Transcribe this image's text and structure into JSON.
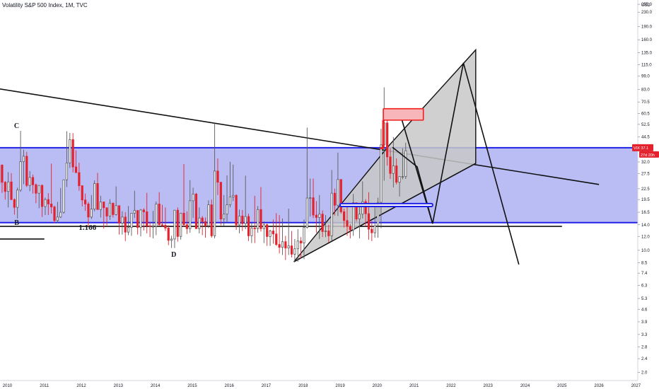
{
  "header": {
    "title": "Volatility S&P 500 Index, 1M, TVC"
  },
  "chart_data": {
    "type": "candlestick",
    "title": "Volatility S&P 500 Index, 1M, TVC",
    "yscale": "log",
    "yunit": "USD",
    "y_ticks": [
      "255.0",
      "230.0",
      "190.0",
      "160.0",
      "135.0",
      "115.0",
      "99.0",
      "83.0",
      "70.5",
      "60.5",
      "52.5",
      "44.5",
      "37.5",
      "32.0",
      "27.5",
      "22.5",
      "19.5",
      "16.5",
      "14.0",
      "12.0",
      "10.0",
      "8.5",
      "7.4",
      "6.3",
      "5.3",
      "4.6",
      "3.9",
      "3.3",
      "2.8",
      "2.4",
      "2.0"
    ],
    "x_ticks": [
      "2010",
      "2011",
      "2012",
      "2013",
      "2014",
      "2015",
      "2016",
      "2017",
      "2018",
      "2019",
      "2020",
      "2021",
      "2022",
      "2023",
      "2024",
      "2025",
      "2026",
      "2027"
    ],
    "ylim": [
      1.8,
      270
    ],
    "xlim_year": [
      2009.8,
      2027.05
    ],
    "price_tags": {
      "symbol": "VIX",
      "last": "37.1",
      "countdown": "27d 20h"
    },
    "zone": {
      "top": 38.6,
      "bottom": 14.4
    },
    "candles": [
      {
        "t": "2009-10",
        "o": 24.0,
        "h": 30.7,
        "l": 20.9,
        "c": 30.7
      },
      {
        "t": "2009-11",
        "o": 30.7,
        "h": 31.0,
        "l": 21.3,
        "c": 24.5
      },
      {
        "t": "2009-12",
        "o": 24.5,
        "h": 24.9,
        "l": 19.5,
        "c": 21.7
      },
      {
        "t": "2010-01",
        "o": 21.7,
        "h": 28.0,
        "l": 17.6,
        "c": 24.6
      },
      {
        "t": "2010-02",
        "o": 24.6,
        "h": 27.6,
        "l": 19.4,
        "c": 19.5
      },
      {
        "t": "2010-03",
        "o": 19.5,
        "h": 19.8,
        "l": 16.0,
        "c": 17.6
      },
      {
        "t": "2010-04",
        "o": 17.6,
        "h": 22.8,
        "l": 15.2,
        "c": 22.1
      },
      {
        "t": "2010-05",
        "o": 22.1,
        "h": 48.2,
        "l": 21.6,
        "c": 32.1
      },
      {
        "t": "2010-06",
        "o": 32.1,
        "h": 37.6,
        "l": 23.9,
        "c": 34.5
      },
      {
        "t": "2010-07",
        "o": 34.5,
        "h": 36.6,
        "l": 23.0,
        "c": 23.5
      },
      {
        "t": "2010-08",
        "o": 23.5,
        "h": 28.4,
        "l": 21.8,
        "c": 26.1
      },
      {
        "t": "2010-09",
        "o": 26.1,
        "h": 27.1,
        "l": 21.1,
        "c": 23.7
      },
      {
        "t": "2010-10",
        "o": 23.7,
        "h": 24.1,
        "l": 18.6,
        "c": 21.2
      },
      {
        "t": "2010-11",
        "o": 21.2,
        "h": 23.5,
        "l": 17.4,
        "c": 23.5
      },
      {
        "t": "2010-12",
        "o": 23.5,
        "h": 23.8,
        "l": 15.5,
        "c": 17.8
      },
      {
        "t": "2011-01",
        "o": 17.8,
        "h": 20.0,
        "l": 15.9,
        "c": 19.5
      },
      {
        "t": "2011-02",
        "o": 19.5,
        "h": 21.2,
        "l": 15.9,
        "c": 18.4
      },
      {
        "t": "2011-03",
        "o": 18.4,
        "h": 31.3,
        "l": 16.2,
        "c": 17.7
      },
      {
        "t": "2011-04",
        "o": 17.7,
        "h": 18.0,
        "l": 14.3,
        "c": 14.8
      },
      {
        "t": "2011-05",
        "o": 14.8,
        "h": 18.9,
        "l": 14.3,
        "c": 15.5
      },
      {
        "t": "2011-06",
        "o": 15.5,
        "h": 22.7,
        "l": 15.3,
        "c": 16.5
      },
      {
        "t": "2011-07",
        "o": 16.5,
        "h": 25.3,
        "l": 16.2,
        "c": 25.3
      },
      {
        "t": "2011-08",
        "o": 25.3,
        "h": 48.0,
        "l": 23.0,
        "c": 31.6
      },
      {
        "t": "2011-09",
        "o": 31.6,
        "h": 46.9,
        "l": 29.6,
        "c": 42.96
      },
      {
        "t": "2011-10",
        "o": 42.96,
        "h": 46.8,
        "l": 27.9,
        "c": 29.96
      },
      {
        "t": "2011-11",
        "o": 29.96,
        "h": 37.3,
        "l": 28.0,
        "c": 27.8
      },
      {
        "t": "2011-12",
        "o": 27.8,
        "h": 31.7,
        "l": 21.9,
        "c": 23.4
      },
      {
        "t": "2012-01",
        "o": 23.4,
        "h": 23.5,
        "l": 17.8,
        "c": 19.4
      },
      {
        "t": "2012-02",
        "o": 19.4,
        "h": 21.1,
        "l": 16.8,
        "c": 18.4
      },
      {
        "t": "2012-03",
        "o": 18.4,
        "h": 18.9,
        "l": 13.7,
        "c": 15.5
      },
      {
        "t": "2012-04",
        "o": 15.5,
        "h": 20.7,
        "l": 15.1,
        "c": 17.2
      },
      {
        "t": "2012-05",
        "o": 17.2,
        "h": 25.1,
        "l": 16.7,
        "c": 24.1
      },
      {
        "t": "2012-06",
        "o": 24.1,
        "h": 27.7,
        "l": 17.1,
        "c": 17.1
      },
      {
        "t": "2012-07",
        "o": 17.1,
        "h": 20.5,
        "l": 15.4,
        "c": 18.9
      },
      {
        "t": "2012-08",
        "o": 18.9,
        "h": 19.0,
        "l": 13.3,
        "c": 17.5
      },
      {
        "t": "2012-09",
        "o": 17.5,
        "h": 17.6,
        "l": 13.9,
        "c": 15.7
      },
      {
        "t": "2012-10",
        "o": 15.7,
        "h": 19.6,
        "l": 14.9,
        "c": 18.6
      },
      {
        "t": "2012-11",
        "o": 18.6,
        "h": 18.7,
        "l": 15.4,
        "c": 16.0
      },
      {
        "t": "2012-12",
        "o": 16.0,
        "h": 23.2,
        "l": 15.8,
        "c": 18.0
      },
      {
        "t": "2013-01",
        "o": 18.0,
        "h": 18.0,
        "l": 12.3,
        "c": 14.3
      },
      {
        "t": "2013-02",
        "o": 14.3,
        "h": 16.7,
        "l": 12.3,
        "c": 15.5
      },
      {
        "t": "2013-03",
        "o": 15.5,
        "h": 16.5,
        "l": 11.3,
        "c": 12.7
      },
      {
        "t": "2013-04",
        "o": 12.7,
        "h": 17.9,
        "l": 12.2,
        "c": 13.5
      },
      {
        "t": "2013-05",
        "o": 13.5,
        "h": 16.3,
        "l": 12.1,
        "c": 16.3
      },
      {
        "t": "2013-06",
        "o": 16.3,
        "h": 21.9,
        "l": 15.3,
        "c": 16.9
      },
      {
        "t": "2013-07",
        "o": 16.9,
        "h": 16.9,
        "l": 12.3,
        "c": 13.5
      },
      {
        "t": "2013-08",
        "o": 13.5,
        "h": 17.2,
        "l": 12.0,
        "c": 17.0
      },
      {
        "t": "2013-09",
        "o": 17.0,
        "h": 17.4,
        "l": 13.0,
        "c": 16.6
      },
      {
        "t": "2013-10",
        "o": 16.6,
        "h": 21.3,
        "l": 12.5,
        "c": 13.8
      },
      {
        "t": "2013-11",
        "o": 13.8,
        "h": 14.5,
        "l": 11.9,
        "c": 13.7
      },
      {
        "t": "2013-12",
        "o": 13.7,
        "h": 16.8,
        "l": 11.7,
        "c": 13.7
      },
      {
        "t": "2014-01",
        "o": 13.7,
        "h": 19.0,
        "l": 12.2,
        "c": 18.4
      },
      {
        "t": "2014-02",
        "o": 18.4,
        "h": 21.5,
        "l": 13.7,
        "c": 14.0
      },
      {
        "t": "2014-03",
        "o": 14.0,
        "h": 18.2,
        "l": 13.6,
        "c": 13.9
      },
      {
        "t": "2014-04",
        "o": 13.9,
        "h": 17.6,
        "l": 12.9,
        "c": 13.4
      },
      {
        "t": "2014-05",
        "o": 13.4,
        "h": 13.9,
        "l": 10.7,
        "c": 11.4
      },
      {
        "t": "2014-06",
        "o": 11.4,
        "h": 12.1,
        "l": 10.3,
        "c": 11.6
      },
      {
        "t": "2014-07",
        "o": 11.6,
        "h": 17.0,
        "l": 10.3,
        "c": 16.95
      },
      {
        "t": "2014-08",
        "o": 16.95,
        "h": 17.6,
        "l": 11.2,
        "c": 12.0
      },
      {
        "t": "2014-09",
        "o": 12.0,
        "h": 16.3,
        "l": 11.5,
        "c": 16.3
      },
      {
        "t": "2014-10",
        "o": 16.3,
        "h": 31.1,
        "l": 13.6,
        "c": 14.0
      },
      {
        "t": "2014-11",
        "o": 14.0,
        "h": 16.7,
        "l": 12.4,
        "c": 13.3
      },
      {
        "t": "2014-12",
        "o": 13.3,
        "h": 25.2,
        "l": 12.6,
        "c": 19.2
      },
      {
        "t": "2015-01",
        "o": 19.2,
        "h": 22.8,
        "l": 15.3,
        "c": 20.97
      },
      {
        "t": "2015-02",
        "o": 20.97,
        "h": 21.3,
        "l": 13.3,
        "c": 13.3
      },
      {
        "t": "2015-03",
        "o": 13.3,
        "h": 17.6,
        "l": 12.5,
        "c": 15.3
      },
      {
        "t": "2015-04",
        "o": 15.3,
        "h": 15.7,
        "l": 12.2,
        "c": 14.6
      },
      {
        "t": "2015-05",
        "o": 14.6,
        "h": 15.4,
        "l": 11.8,
        "c": 13.8
      },
      {
        "t": "2015-06",
        "o": 13.8,
        "h": 19.3,
        "l": 13.4,
        "c": 18.2
      },
      {
        "t": "2015-07",
        "o": 18.2,
        "h": 19.5,
        "l": 11.8,
        "c": 12.1
      },
      {
        "t": "2015-08",
        "o": 12.1,
        "h": 53.3,
        "l": 11.7,
        "c": 28.4
      },
      {
        "t": "2015-09",
        "o": 28.4,
        "h": 33.5,
        "l": 20.7,
        "c": 24.5
      },
      {
        "t": "2015-10",
        "o": 24.5,
        "h": 24.6,
        "l": 13.9,
        "c": 15.1
      },
      {
        "t": "2015-11",
        "o": 15.1,
        "h": 20.7,
        "l": 13.8,
        "c": 16.1
      },
      {
        "t": "2015-12",
        "o": 16.1,
        "h": 26.8,
        "l": 14.4,
        "c": 18.2
      },
      {
        "t": "2016-01",
        "o": 18.2,
        "h": 32.1,
        "l": 17.6,
        "c": 20.2
      },
      {
        "t": "2016-02",
        "o": 20.2,
        "h": 30.9,
        "l": 19.1,
        "c": 20.6
      },
      {
        "t": "2016-03",
        "o": 20.6,
        "h": 20.9,
        "l": 13.1,
        "c": 13.95
      },
      {
        "t": "2016-04",
        "o": 13.95,
        "h": 17.1,
        "l": 12.5,
        "c": 15.7
      },
      {
        "t": "2016-05",
        "o": 15.7,
        "h": 17.0,
        "l": 12.9,
        "c": 14.2
      },
      {
        "t": "2016-06",
        "o": 14.2,
        "h": 26.7,
        "l": 13.2,
        "c": 15.6
      },
      {
        "t": "2016-07",
        "o": 15.6,
        "h": 16.2,
        "l": 11.3,
        "c": 12.1
      },
      {
        "t": "2016-08",
        "o": 12.1,
        "h": 14.3,
        "l": 11.0,
        "c": 13.4
      },
      {
        "t": "2016-09",
        "o": 13.4,
        "h": 20.5,
        "l": 11.0,
        "c": 13.3
      },
      {
        "t": "2016-10",
        "o": 13.3,
        "h": 17.9,
        "l": 12.6,
        "c": 17.1
      },
      {
        "t": "2016-11",
        "o": 17.1,
        "h": 23.0,
        "l": 12.8,
        "c": 13.3
      },
      {
        "t": "2016-12",
        "o": 13.3,
        "h": 14.6,
        "l": 11.0,
        "c": 14.0
      },
      {
        "t": "2017-01",
        "o": 14.0,
        "h": 14.2,
        "l": 10.6,
        "c": 11.99
      },
      {
        "t": "2017-02",
        "o": 11.99,
        "h": 13.1,
        "l": 10.6,
        "c": 12.9
      },
      {
        "t": "2017-03",
        "o": 12.9,
        "h": 15.0,
        "l": 10.9,
        "c": 12.4
      },
      {
        "t": "2017-04",
        "o": 12.4,
        "h": 16.3,
        "l": 10.6,
        "c": 10.8
      },
      {
        "t": "2017-05",
        "o": 10.8,
        "h": 15.9,
        "l": 9.6,
        "c": 10.4
      },
      {
        "t": "2017-06",
        "o": 10.4,
        "h": 15.2,
        "l": 9.4,
        "c": 11.2
      },
      {
        "t": "2017-07",
        "o": 11.2,
        "h": 12.1,
        "l": 8.8,
        "c": 10.3
      },
      {
        "t": "2017-08",
        "o": 10.3,
        "h": 17.3,
        "l": 9.4,
        "c": 10.6
      },
      {
        "t": "2017-09",
        "o": 10.6,
        "h": 12.9,
        "l": 9.1,
        "c": 9.5
      },
      {
        "t": "2017-10",
        "o": 9.5,
        "h": 11.6,
        "l": 8.6,
        "c": 10.2
      },
      {
        "t": "2017-11",
        "o": 10.2,
        "h": 13.2,
        "l": 8.6,
        "c": 11.3
      },
      {
        "t": "2017-12",
        "o": 11.3,
        "h": 11.9,
        "l": 9.0,
        "c": 11.0
      },
      {
        "t": "2018-01",
        "o": 11.0,
        "h": 15.0,
        "l": 8.9,
        "c": 13.5
      },
      {
        "t": "2018-02",
        "o": 13.5,
        "h": 50.3,
        "l": 13.3,
        "c": 19.9
      },
      {
        "t": "2018-03",
        "o": 19.9,
        "h": 25.7,
        "l": 15.6,
        "c": 19.97
      },
      {
        "t": "2018-04",
        "o": 19.97,
        "h": 25.7,
        "l": 15.3,
        "c": 15.9
      },
      {
        "t": "2018-05",
        "o": 15.9,
        "h": 19.1,
        "l": 12.6,
        "c": 15.4
      },
      {
        "t": "2018-06",
        "o": 15.4,
        "h": 20.7,
        "l": 11.6,
        "c": 16.1
      },
      {
        "t": "2018-07",
        "o": 16.1,
        "h": 16.9,
        "l": 11.9,
        "c": 12.8
      },
      {
        "t": "2018-08",
        "o": 12.8,
        "h": 15.9,
        "l": 11.9,
        "c": 12.9
      },
      {
        "t": "2018-09",
        "o": 12.9,
        "h": 14.0,
        "l": 11.1,
        "c": 12.1
      },
      {
        "t": "2018-10",
        "o": 12.1,
        "h": 28.8,
        "l": 11.3,
        "c": 21.2
      },
      {
        "t": "2018-11",
        "o": 21.2,
        "h": 22.5,
        "l": 15.8,
        "c": 18.1
      },
      {
        "t": "2018-12",
        "o": 18.1,
        "h": 36.2,
        "l": 15.7,
        "c": 25.4
      },
      {
        "t": "2019-01",
        "o": 25.4,
        "h": 25.5,
        "l": 16.2,
        "c": 16.6
      },
      {
        "t": "2019-02",
        "o": 16.6,
        "h": 17.3,
        "l": 13.5,
        "c": 14.8
      },
      {
        "t": "2019-03",
        "o": 14.8,
        "h": 17.8,
        "l": 12.1,
        "c": 13.7
      },
      {
        "t": "2019-04",
        "o": 13.7,
        "h": 14.1,
        "l": 11.7,
        "c": 13.1
      },
      {
        "t": "2019-05",
        "o": 13.1,
        "h": 21.0,
        "l": 12.1,
        "c": 18.7
      },
      {
        "t": "2019-06",
        "o": 18.7,
        "h": 18.7,
        "l": 14.6,
        "c": 15.1
      },
      {
        "t": "2019-07",
        "o": 15.1,
        "h": 17.9,
        "l": 11.7,
        "c": 16.1
      },
      {
        "t": "2019-08",
        "o": 16.1,
        "h": 24.8,
        "l": 15.2,
        "c": 18.98
      },
      {
        "t": "2019-09",
        "o": 18.98,
        "h": 19.6,
        "l": 13.7,
        "c": 16.2
      },
      {
        "t": "2019-10",
        "o": 16.2,
        "h": 21.5,
        "l": 11.5,
        "c": 13.2
      },
      {
        "t": "2019-11",
        "o": 13.2,
        "h": 14.7,
        "l": 11.3,
        "c": 12.6
      },
      {
        "t": "2019-12",
        "o": 12.6,
        "h": 17.9,
        "l": 11.8,
        "c": 13.8
      },
      {
        "t": "2020-01",
        "o": 13.8,
        "h": 19.99,
        "l": 11.8,
        "c": 18.8
      },
      {
        "t": "2020-02",
        "o": 18.8,
        "h": 49.5,
        "l": 13.4,
        "c": 40.1
      },
      {
        "t": "2020-03",
        "o": 40.1,
        "h": 85.5,
        "l": 25.0,
        "c": 53.5
      },
      {
        "t": "2020-04",
        "o": 53.5,
        "h": 60.6,
        "l": 30.5,
        "c": 34.2
      },
      {
        "t": "2020-05",
        "o": 34.2,
        "h": 38.3,
        "l": 25.6,
        "c": 27.5
      },
      {
        "t": "2020-06",
        "o": 27.5,
        "h": 44.4,
        "l": 22.9,
        "c": 30.4
      },
      {
        "t": "2020-07",
        "o": 30.4,
        "h": 33.5,
        "l": 23.8,
        "c": 24.5
      },
      {
        "t": "2020-08",
        "o": 24.5,
        "h": 26.4,
        "l": 20.3,
        "c": 26.4
      },
      {
        "t": "2020-09",
        "o": 26.4,
        "h": 38.3,
        "l": 25.5,
        "c": 26.4
      },
      {
        "t": "2020-10",
        "o": 26.4,
        "h": 41.2,
        "l": 25.6,
        "c": 37.1
      }
    ],
    "annotations": [
      {
        "text": "C",
        "t": "2010-04",
        "price": 50.0
      },
      {
        "text": "B",
        "t": "2010-04",
        "price": 14.0
      },
      {
        "text": "1.166",
        "t": "2012-03",
        "price": 13.1
      },
      {
        "text": "D",
        "t": "2014-07",
        "price": 9.2
      }
    ],
    "overlays": [
      {
        "kind": "line",
        "from": [
          "2009-10",
          84.0
        ],
        "to": [
          "2026-01",
          23.8
        ]
      },
      {
        "kind": "line",
        "from": [
          "2009-10",
          11.6
        ],
        "to": [
          "2011-01",
          11.6
        ]
      },
      {
        "kind": "line",
        "from": [
          "2009-10",
          13.7
        ],
        "to": [
          "2025-01",
          13.7
        ]
      },
      {
        "kind": "polygon",
        "points": [
          [
            "2017-10",
            8.6
          ],
          [
            "2020-05",
            40.0
          ],
          [
            "2022-09",
            140.0
          ],
          [
            "2022-09",
            31.4
          ]
        ]
      },
      {
        "kind": "polyline",
        "points": [
          [
            "2020-09",
            56.0
          ],
          [
            "2021-07",
            14.2
          ],
          [
            "2022-05",
            118.0
          ],
          [
            "2023-11",
            8.3
          ]
        ]
      },
      {
        "kind": "polyline",
        "points": [
          [
            "2020-06",
            38.8
          ],
          [
            "2021-02",
            30.0
          ],
          [
            "2021-07",
            14.2
          ]
        ]
      },
      {
        "kind": "rect",
        "from": [
          "2019-01",
          18.5
        ],
        "to": [
          "2021-07",
          17.8
        ],
        "style": "blue"
      },
      {
        "kind": "rect",
        "from": [
          "2020-03",
          64.5
        ],
        "to": [
          "2021-04",
          55.5
        ],
        "style": "red"
      },
      {
        "kind": "line",
        "from": [
          "2020-03",
          55.5
        ],
        "to": [
          "2020-03",
          38.4
        ],
        "style": "red"
      },
      {
        "kind": "line",
        "from": [
          "2020-02",
          38.4
        ],
        "to": [
          "2020-03",
          38.4
        ],
        "style": "red"
      }
    ]
  }
}
